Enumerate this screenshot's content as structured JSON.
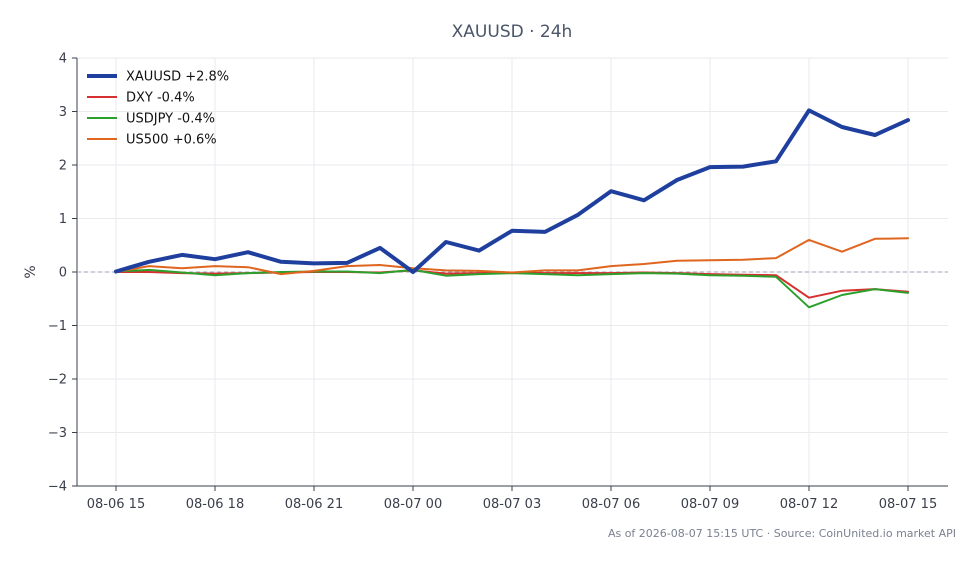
{
  "chart_data": {
    "type": "line",
    "title": "XAUUSD · 24h",
    "xlabel": "",
    "ylabel": "%",
    "ylim": [
      -4,
      4
    ],
    "yticks": [
      "−4",
      "−3",
      "−2",
      "−1",
      "0",
      "1",
      "2",
      "3",
      "4"
    ],
    "xticks": [
      "08-06 15",
      "08-06 18",
      "08-06 21",
      "08-07 00",
      "08-07 03",
      "08-07 06",
      "08-07 09",
      "08-07 12",
      "08-07 15"
    ],
    "grid": true,
    "zero_line": true,
    "legend_position": "top-left",
    "x": [
      "08-06 15",
      "08-06 16",
      "08-06 17",
      "08-06 18",
      "08-06 19",
      "08-06 20",
      "08-06 21",
      "08-06 22",
      "08-06 23",
      "08-07 00",
      "08-07 01",
      "08-07 02",
      "08-07 03",
      "08-07 04",
      "08-07 05",
      "08-07 06",
      "08-07 07",
      "08-07 08",
      "08-07 09",
      "08-07 10",
      "08-07 11",
      "08-07 12",
      "08-07 13",
      "08-07 14",
      "08-07 15"
    ],
    "series": [
      {
        "name": "XAUUSD +2.8%",
        "color": "#1f3f9e",
        "width": 4,
        "values": [
          0.01,
          0.19,
          0.32,
          0.24,
          0.37,
          0.19,
          0.16,
          0.17,
          0.45,
          0.0,
          0.56,
          0.4,
          0.77,
          0.75,
          1.07,
          1.51,
          1.34,
          1.72,
          1.96,
          1.97,
          2.07,
          3.02,
          2.71,
          2.56,
          2.84
        ]
      },
      {
        "name": "DXY -0.4%",
        "color": "#d62f2f",
        "width": 2,
        "values": [
          0.0,
          0.0,
          -0.02,
          -0.03,
          -0.02,
          -0.01,
          0.0,
          0.0,
          -0.01,
          0.03,
          -0.03,
          -0.02,
          -0.01,
          -0.02,
          -0.02,
          -0.02,
          -0.01,
          -0.02,
          -0.04,
          -0.05,
          -0.06,
          -0.48,
          -0.35,
          -0.32,
          -0.37
        ]
      },
      {
        "name": "USDJPY -0.4%",
        "color": "#2ca02c",
        "width": 2,
        "values": [
          0.01,
          0.04,
          -0.01,
          -0.06,
          -0.02,
          0.0,
          0.01,
          0.01,
          -0.02,
          0.04,
          -0.07,
          -0.04,
          -0.02,
          -0.04,
          -0.06,
          -0.04,
          -0.02,
          -0.03,
          -0.06,
          -0.07,
          -0.09,
          -0.66,
          -0.43,
          -0.32,
          -0.39
        ]
      },
      {
        "name": "US500 +0.6%",
        "color": "#e0651e",
        "width": 2,
        "values": [
          0.0,
          0.11,
          0.07,
          0.11,
          0.09,
          -0.04,
          0.02,
          0.11,
          0.13,
          0.07,
          0.03,
          0.02,
          -0.01,
          0.03,
          0.03,
          0.11,
          0.15,
          0.21,
          0.22,
          0.23,
          0.26,
          0.6,
          0.38,
          0.62,
          0.63
        ]
      }
    ]
  },
  "footer": "As of 2026-08-07 15:15 UTC · Source: CoinUnited.io market API"
}
